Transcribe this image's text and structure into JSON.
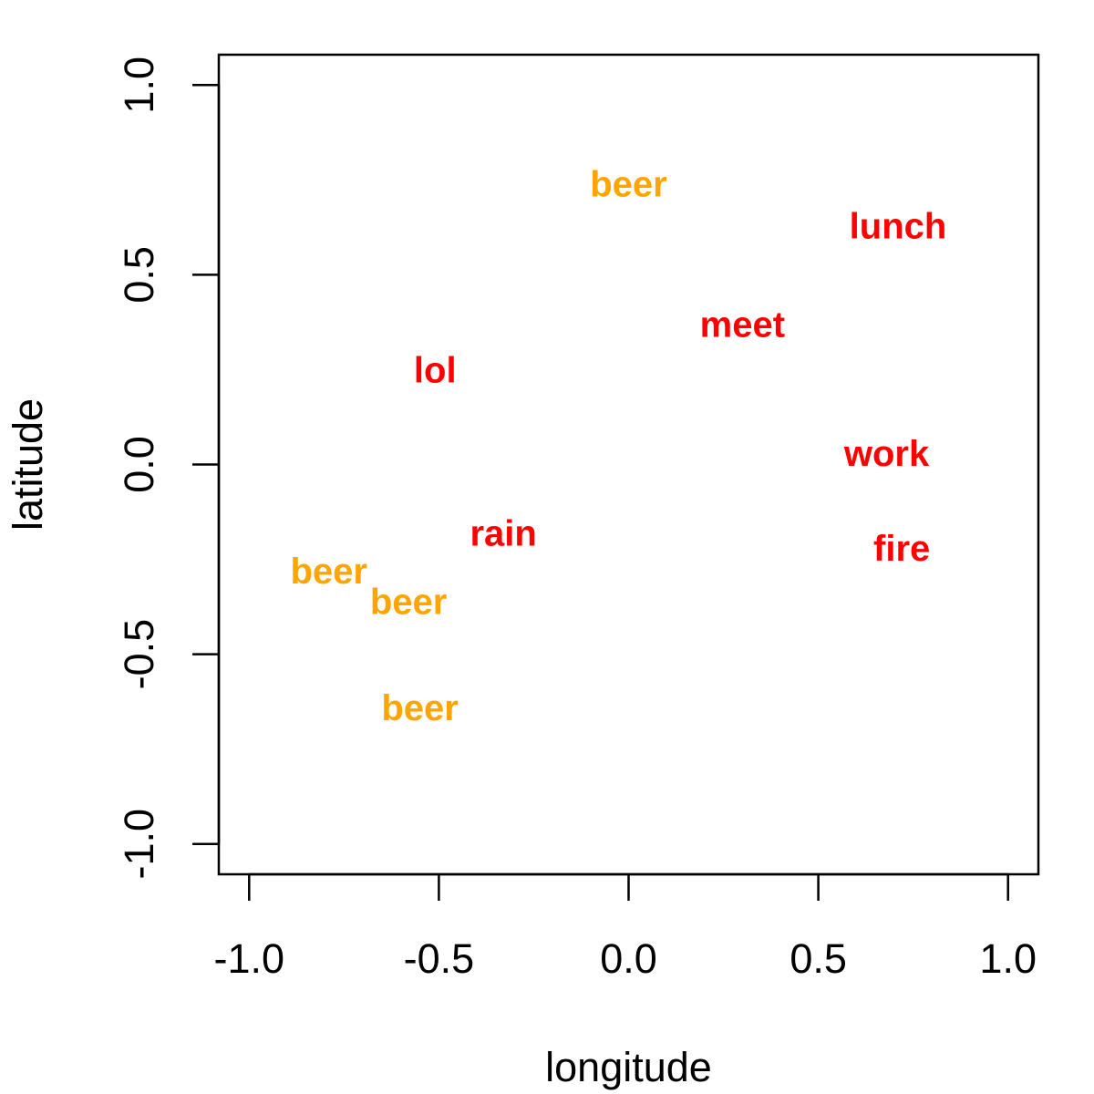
{
  "chart_data": {
    "type": "scatter",
    "xlabel": "longitude",
    "ylabel": "latitude",
    "xlim": [
      -1.08,
      1.08
    ],
    "ylim": [
      -1.08,
      1.08
    ],
    "x_ticks": [
      -1.0,
      -0.5,
      0.0,
      0.5,
      1.0
    ],
    "y_ticks": [
      -1.0,
      -0.5,
      0.0,
      0.5,
      1.0
    ],
    "x_tick_labels": [
      "-1.0",
      "-0.5",
      "0.0",
      "0.5",
      "1.0"
    ],
    "y_tick_labels": [
      "-1.0",
      "-0.5",
      "0.0",
      "0.5",
      "1.0"
    ],
    "grid": false,
    "colors": {
      "orange": "#FFA500",
      "red": "#FF0000"
    },
    "points": [
      {
        "label": "beer",
        "x": 0.0,
        "y": 0.74,
        "color": "orange"
      },
      {
        "label": "lunch",
        "x": 0.71,
        "y": 0.63,
        "color": "red"
      },
      {
        "label": "meet",
        "x": 0.3,
        "y": 0.37,
        "color": "red"
      },
      {
        "label": "lol",
        "x": -0.51,
        "y": 0.25,
        "color": "red"
      },
      {
        "label": "work",
        "x": 0.68,
        "y": 0.03,
        "color": "red"
      },
      {
        "label": "rain",
        "x": -0.33,
        "y": -0.18,
        "color": "red"
      },
      {
        "label": "fire",
        "x": 0.72,
        "y": -0.22,
        "color": "red"
      },
      {
        "label": "beer",
        "x": -0.79,
        "y": -0.28,
        "color": "orange"
      },
      {
        "label": "beer",
        "x": -0.58,
        "y": -0.36,
        "color": "orange"
      },
      {
        "label": "beer",
        "x": -0.55,
        "y": -0.64,
        "color": "orange"
      }
    ]
  }
}
